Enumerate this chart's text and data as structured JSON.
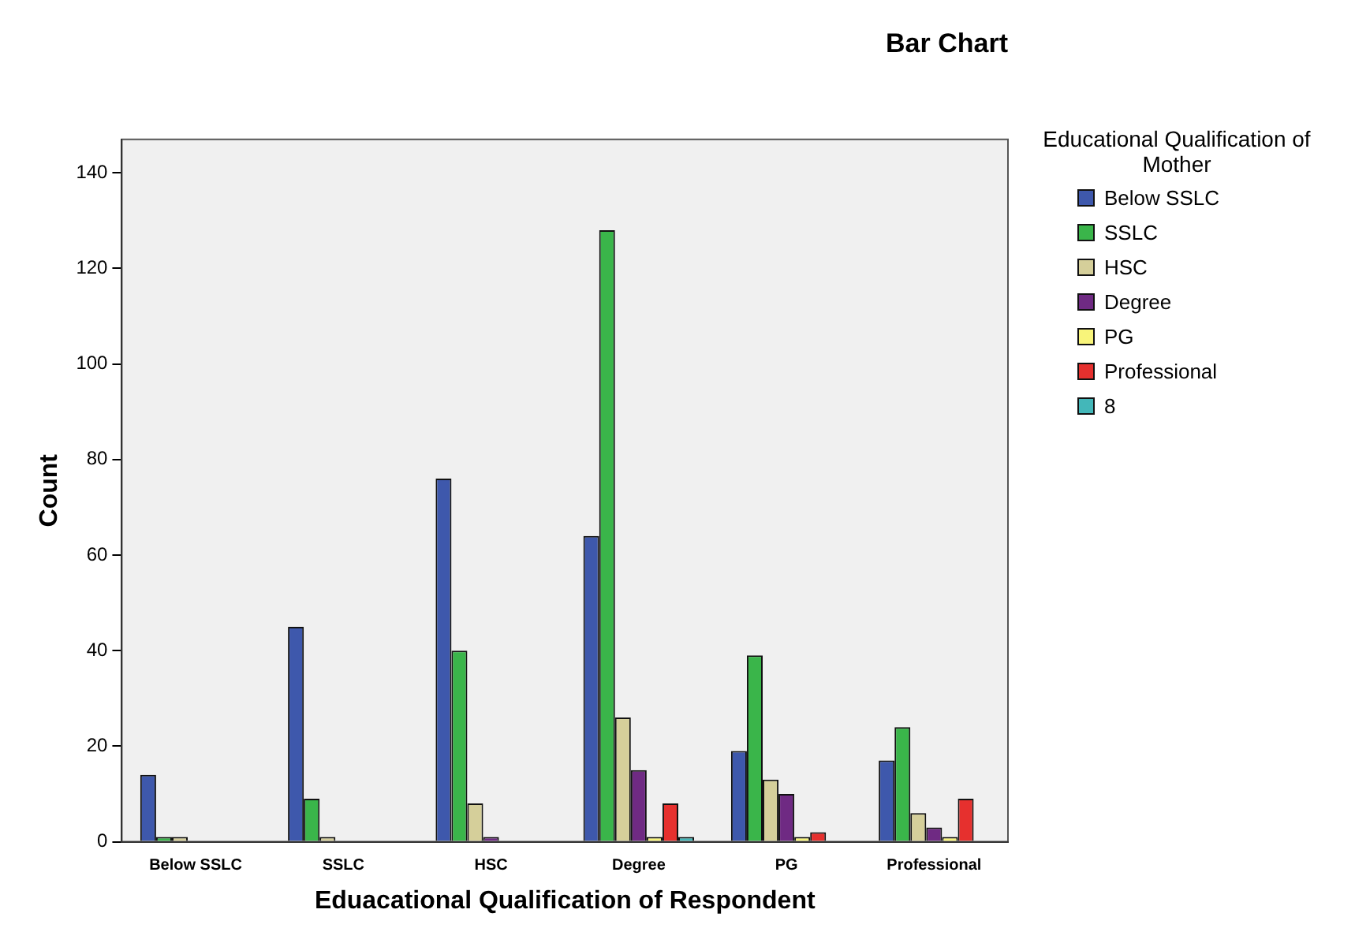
{
  "chart_data": {
    "type": "bar",
    "title": "Bar Chart",
    "xlabel": "Eduacational Qualification of Respondent",
    "ylabel": "Count",
    "legend_title": "Educational Qualification of Mother",
    "categories": [
      "Below SSLC",
      "SSLC",
      "HSC",
      "Degree",
      "PG",
      "Professional"
    ],
    "series": [
      {
        "name": "Below SSLC",
        "color": "#3e58ac",
        "values": [
          14,
          45,
          76,
          64,
          19,
          17
        ]
      },
      {
        "name": "SSLC",
        "color": "#3ab54a",
        "values": [
          1,
          9,
          40,
          128,
          39,
          24
        ]
      },
      {
        "name": "HSC",
        "color": "#d5cf9a",
        "values": [
          1,
          1,
          8,
          26,
          13,
          6
        ]
      },
      {
        "name": "Degree",
        "color": "#6f2a83",
        "values": [
          0,
          0,
          1,
          15,
          10,
          3
        ]
      },
      {
        "name": "PG",
        "color": "#f8f47a",
        "values": [
          0,
          0,
          0,
          1,
          1,
          1
        ]
      },
      {
        "name": "Professional",
        "color": "#e6302e",
        "values": [
          0,
          0,
          0,
          8,
          2,
          9
        ]
      },
      {
        "name": "8",
        "color": "#43b7b9",
        "values": [
          0,
          0,
          0,
          1,
          0,
          0
        ]
      }
    ],
    "ylim": [
      0,
      147
    ],
    "yticks": [
      0,
      20,
      40,
      60,
      80,
      100,
      120,
      140
    ],
    "grid": false,
    "legend": "top right"
  }
}
